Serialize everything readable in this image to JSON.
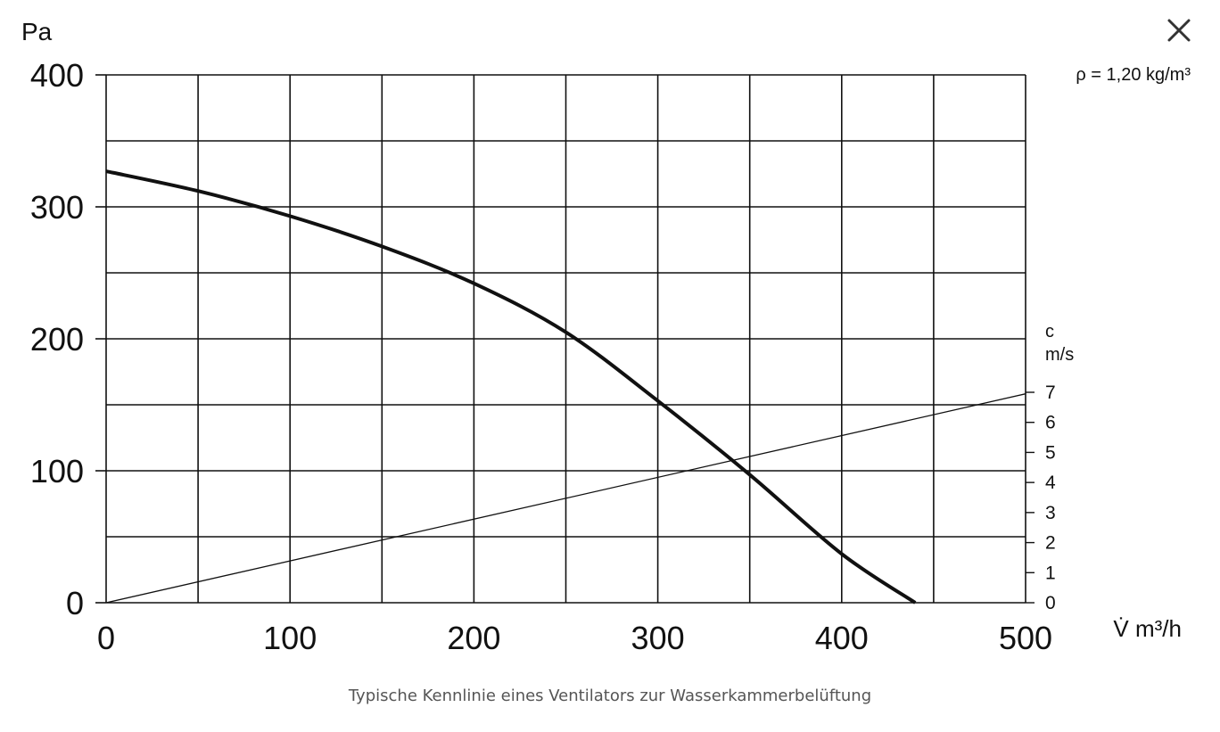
{
  "close_icon": "close-icon",
  "caption": "Typische Kennlinie eines Ventilators zur Wasserkammerbelüftung",
  "chart_data": {
    "type": "line",
    "title": "",
    "density_note": "ρ = 1,20 kg/m³",
    "xlabel": "V̇ m³/h",
    "ylabel": "Pa",
    "y2label_line1": "c",
    "y2label_line2": "m/s",
    "xlim": [
      0,
      500
    ],
    "ylim": [
      0,
      400
    ],
    "y2lim": [
      0,
      7
    ],
    "x_ticks": [
      "0",
      "100",
      "200",
      "300",
      "400",
      "500"
    ],
    "y_ticks": [
      "0",
      "100",
      "200",
      "300",
      "400"
    ],
    "y2_ticks": [
      "0",
      "1",
      "2",
      "3",
      "4",
      "5",
      "6",
      "7"
    ],
    "grid": true,
    "series": [
      {
        "axis": "left",
        "style": "thick",
        "x": [
          0,
          50,
          100,
          150,
          200,
          250,
          300,
          350,
          400,
          440
        ],
        "y": [
          327,
          312,
          293,
          270,
          242,
          205,
          153,
          97,
          37,
          0
        ]
      },
      {
        "axis": "right",
        "style": "thin",
        "x": [
          0,
          500
        ],
        "y": [
          0,
          6.95
        ]
      }
    ]
  }
}
